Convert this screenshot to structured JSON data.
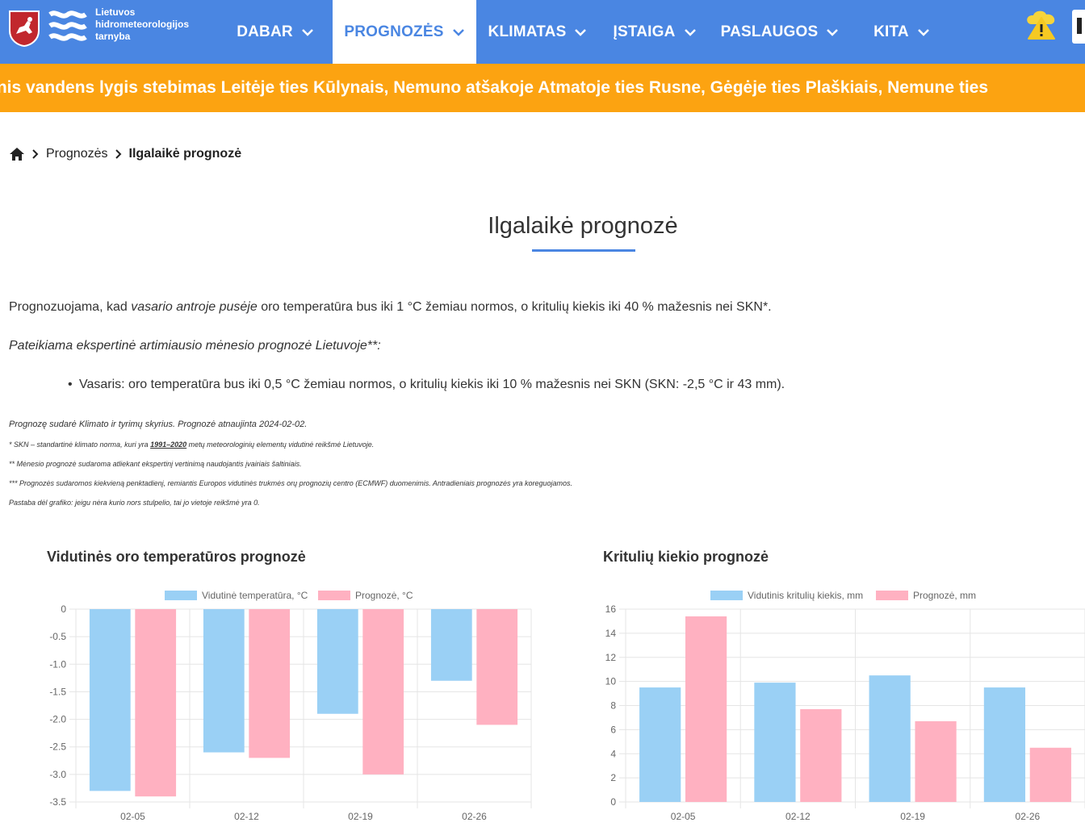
{
  "logo": {
    "line1": "Lietuvos",
    "line2": "hidrometeorologijos",
    "line3": "tarnyba"
  },
  "nav": [
    {
      "label": "DABAR",
      "active": false
    },
    {
      "label": "PROGNOZĖS",
      "active": true
    },
    {
      "label": "KLIMATAS",
      "active": false
    },
    {
      "label": "ĮSTAIGA",
      "active": false
    },
    {
      "label": "PASLAUGOS",
      "active": false
    },
    {
      "label": "KITA",
      "active": false
    }
  ],
  "ticker": "inis vandens lygis stebimas Leitėje ties Kūlynais, Nemuno atšakoje Atmatoje ties Rusne, Gėgėje ties Plaškiais, Nemune ties",
  "breadcrumb": {
    "item1": "Prognozės",
    "current": "Ilgalaikė prognozė"
  },
  "title": "Ilgalaikė prognozė",
  "p1": {
    "a": "Prognozuojama, kad ",
    "b": "vasario antroje pusėje",
    "c": " oro temperatūra bus iki 1 °C žemiau normos, o kritulių kiekis iki 40 % mažesnis nei SKN*."
  },
  "p2": "Pateikiama ekspertinė artimiausio mėnesio prognozė Lietuvoje**:",
  "bullet": "Vasaris: oro temperatūra bus iki 0,5 °C žemiau normos, o kritulių kiekis iki 10 % mažesnis nei SKN (SKN: -2,5 °C ir 43 mm).",
  "notes": {
    "n1": "Prognozę sudarė Klimato ir tyrimų skyrius. Prognozė atnaujinta 2024-02-02.",
    "n2a": "* SKN – standartinė klimato norma, kuri yra ",
    "n2b": "1991–2020",
    "n2c": " metų meteorologinių elementų vidutinė reikšmė Lietuvoje.",
    "n3": "** Mėnesio prognozė sudaroma atliekant ekspertinį vertinimą naudojantis įvairiais šaltiniais.",
    "n4": "*** Prognozės sudaromos kiekvieną penktadienį, remiantis Europos vidutinės trukmės orų prognozių centro (ECMWF) duomenimis. Antradieniais prognozės yra koreguojamos.",
    "n5": "Pastaba dėl grafiko: jeigu nėra kurio nors stulpelio, tai jo vietoje reikšmė yra 0."
  },
  "chart_data": [
    {
      "type": "bar",
      "title": "Vidutinės oro temperatūros prognozė",
      "categories": [
        "02-05",
        "02-12",
        "02-19",
        "02-26"
      ],
      "series": [
        {
          "name": "Vidutinė temperatūra, °C",
          "values": [
            -3.3,
            -2.6,
            -1.9,
            -1.3
          ],
          "color": "#9ad0f5"
        },
        {
          "name": "Prognozė, °C",
          "values": [
            -3.4,
            -2.7,
            -3.0,
            -2.1
          ],
          "color": "#ffb1c1"
        }
      ],
      "yticks": [
        "0",
        "-0.5",
        "-1.0",
        "-1.5",
        "-2.0",
        "-2.5",
        "-3.0",
        "-3.5"
      ],
      "ylim": [
        -3.5,
        0
      ],
      "legend": "top",
      "grid": true
    },
    {
      "type": "bar",
      "title": "Kritulių kiekio prognozė",
      "categories": [
        "02-05",
        "02-12",
        "02-19",
        "02-26"
      ],
      "series": [
        {
          "name": "Vidutinis kritulių kiekis, mm",
          "values": [
            9.5,
            9.9,
            10.5,
            9.5
          ],
          "color": "#9ad0f5"
        },
        {
          "name": "Prognozė, mm",
          "values": [
            15.4,
            7.7,
            6.7,
            4.5
          ],
          "color": "#ffb1c1"
        }
      ],
      "yticks": [
        "16",
        "14",
        "12",
        "10",
        "8",
        "6",
        "4",
        "2",
        "0"
      ],
      "ylim": [
        0,
        16
      ],
      "legend": "top",
      "grid": true
    }
  ]
}
